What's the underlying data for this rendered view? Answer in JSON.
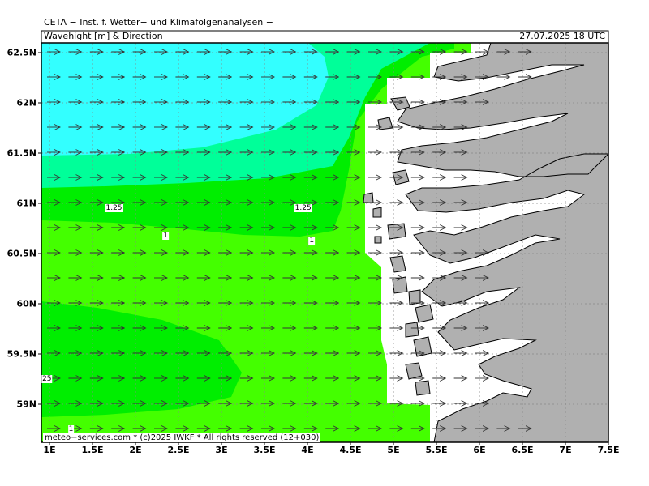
{
  "header": {
    "title": "CETA − Inst. f. Wetter− und Klimafolgenanalysen −",
    "subtitle": "Wavehight [m] & Direction",
    "datetime": "27.07.2025 18 UTC"
  },
  "axes": {
    "x_ticks": [
      "1E",
      "1.5E",
      "2E",
      "2.5E",
      "3E",
      "3.5E",
      "4E",
      "4.5E",
      "5E",
      "5.5E",
      "6E",
      "6.5E",
      "7E",
      "7.5E"
    ],
    "y_ticks": [
      "62.5N",
      "62N",
      "61.5N",
      "61N",
      "60.5N",
      "60N",
      "59.5N",
      "59N"
    ]
  },
  "contour_labels": [
    {
      "text": "1.25",
      "lon": 1.75,
      "lat": 60.95
    },
    {
      "text": "1",
      "lon": 2.35,
      "lat": 60.68
    },
    {
      "text": "1.25",
      "lon": 3.95,
      "lat": 60.95
    },
    {
      "text": "1",
      "lon": 4.05,
      "lat": 60.63
    },
    {
      "text": "25",
      "lon": 0.97,
      "lat": 59.25
    },
    {
      "text": "1",
      "lon": 1.25,
      "lat": 58.75
    }
  ],
  "footer": "meteo−services.com * (c)2025 IWKF * All rights reserved (12+030)",
  "colors": {
    "wave_high": "#33ffff",
    "wave_mid": "#00ff99",
    "wave_lowmid": "#00ee00",
    "wave_low": "#44ff00",
    "land": "#b0b0b0",
    "coast": "#000000",
    "outside_sea": "#ffffff"
  },
  "map": {
    "lon_range": [
      1.0,
      7.5
    ],
    "lat_range": [
      58.65,
      62.6
    ],
    "arrow_direction": "east"
  }
}
